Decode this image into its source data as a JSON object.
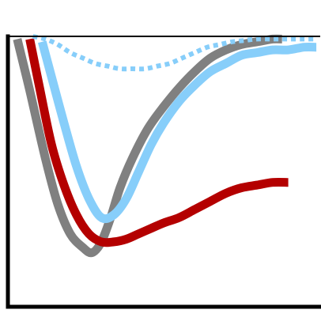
{
  "chart_data": {
    "type": "line",
    "title": "",
    "xlabel": "",
    "ylabel": "",
    "xlim": [
      0,
      100
    ],
    "ylim": [
      0,
      100
    ],
    "grid": false,
    "legend": "none",
    "frame": {
      "left_axis": true,
      "bottom_axis": true,
      "top_reference_line": true,
      "top_reference_y": 100
    },
    "series": [
      {
        "color": "#808080",
        "style": "solid",
        "x": [
          3,
          7,
          12,
          16,
          20,
          24,
          27,
          30,
          33,
          36,
          40,
          45,
          50,
          55,
          60,
          65,
          70,
          75,
          80,
          85,
          88
        ],
        "y": [
          99,
          80,
          55,
          38,
          27,
          22,
          20,
          24,
          33,
          44,
          55,
          66,
          74,
          81,
          87,
          92,
          95,
          97,
          98,
          99,
          99
        ]
      },
      {
        "color": "#b40000",
        "style": "solid",
        "x": [
          7,
          10,
          14,
          18,
          22,
          26,
          30,
          34,
          38,
          42,
          46,
          50,
          55,
          60,
          65,
          70,
          75,
          80,
          85,
          90
        ],
        "y": [
          99,
          82,
          60,
          45,
          34,
          27,
          24,
          24,
          25,
          27,
          29,
          31,
          33,
          36,
          39,
          42,
          44,
          45,
          46,
          46
        ]
      },
      {
        "color": "#87cefa",
        "style": "solid",
        "x": [
          11,
          14,
          18,
          22,
          26,
          30,
          34,
          38,
          42,
          46,
          50,
          55,
          60,
          65,
          70,
          75,
          80,
          85,
          90,
          95,
          99
        ],
        "y": [
          98,
          85,
          68,
          52,
          40,
          33,
          34,
          40,
          50,
          60,
          68,
          76,
          82,
          87,
          90,
          93,
          94,
          95,
          95,
          96,
          96
        ]
      },
      {
        "color": "#87cefa",
        "style": "dotted",
        "x": [
          8,
          12,
          16,
          20,
          24,
          28,
          32,
          36,
          40,
          44,
          48,
          52,
          56,
          60,
          64,
          68,
          72,
          76,
          80,
          85,
          90,
          95,
          99
        ],
        "y": [
          100,
          99,
          97,
          94,
          92,
          90,
          89,
          88,
          88,
          88,
          89,
          90,
          92,
          94,
          96,
          97,
          98,
          98.5,
          99,
          99,
          99,
          99,
          99
        ]
      }
    ]
  }
}
